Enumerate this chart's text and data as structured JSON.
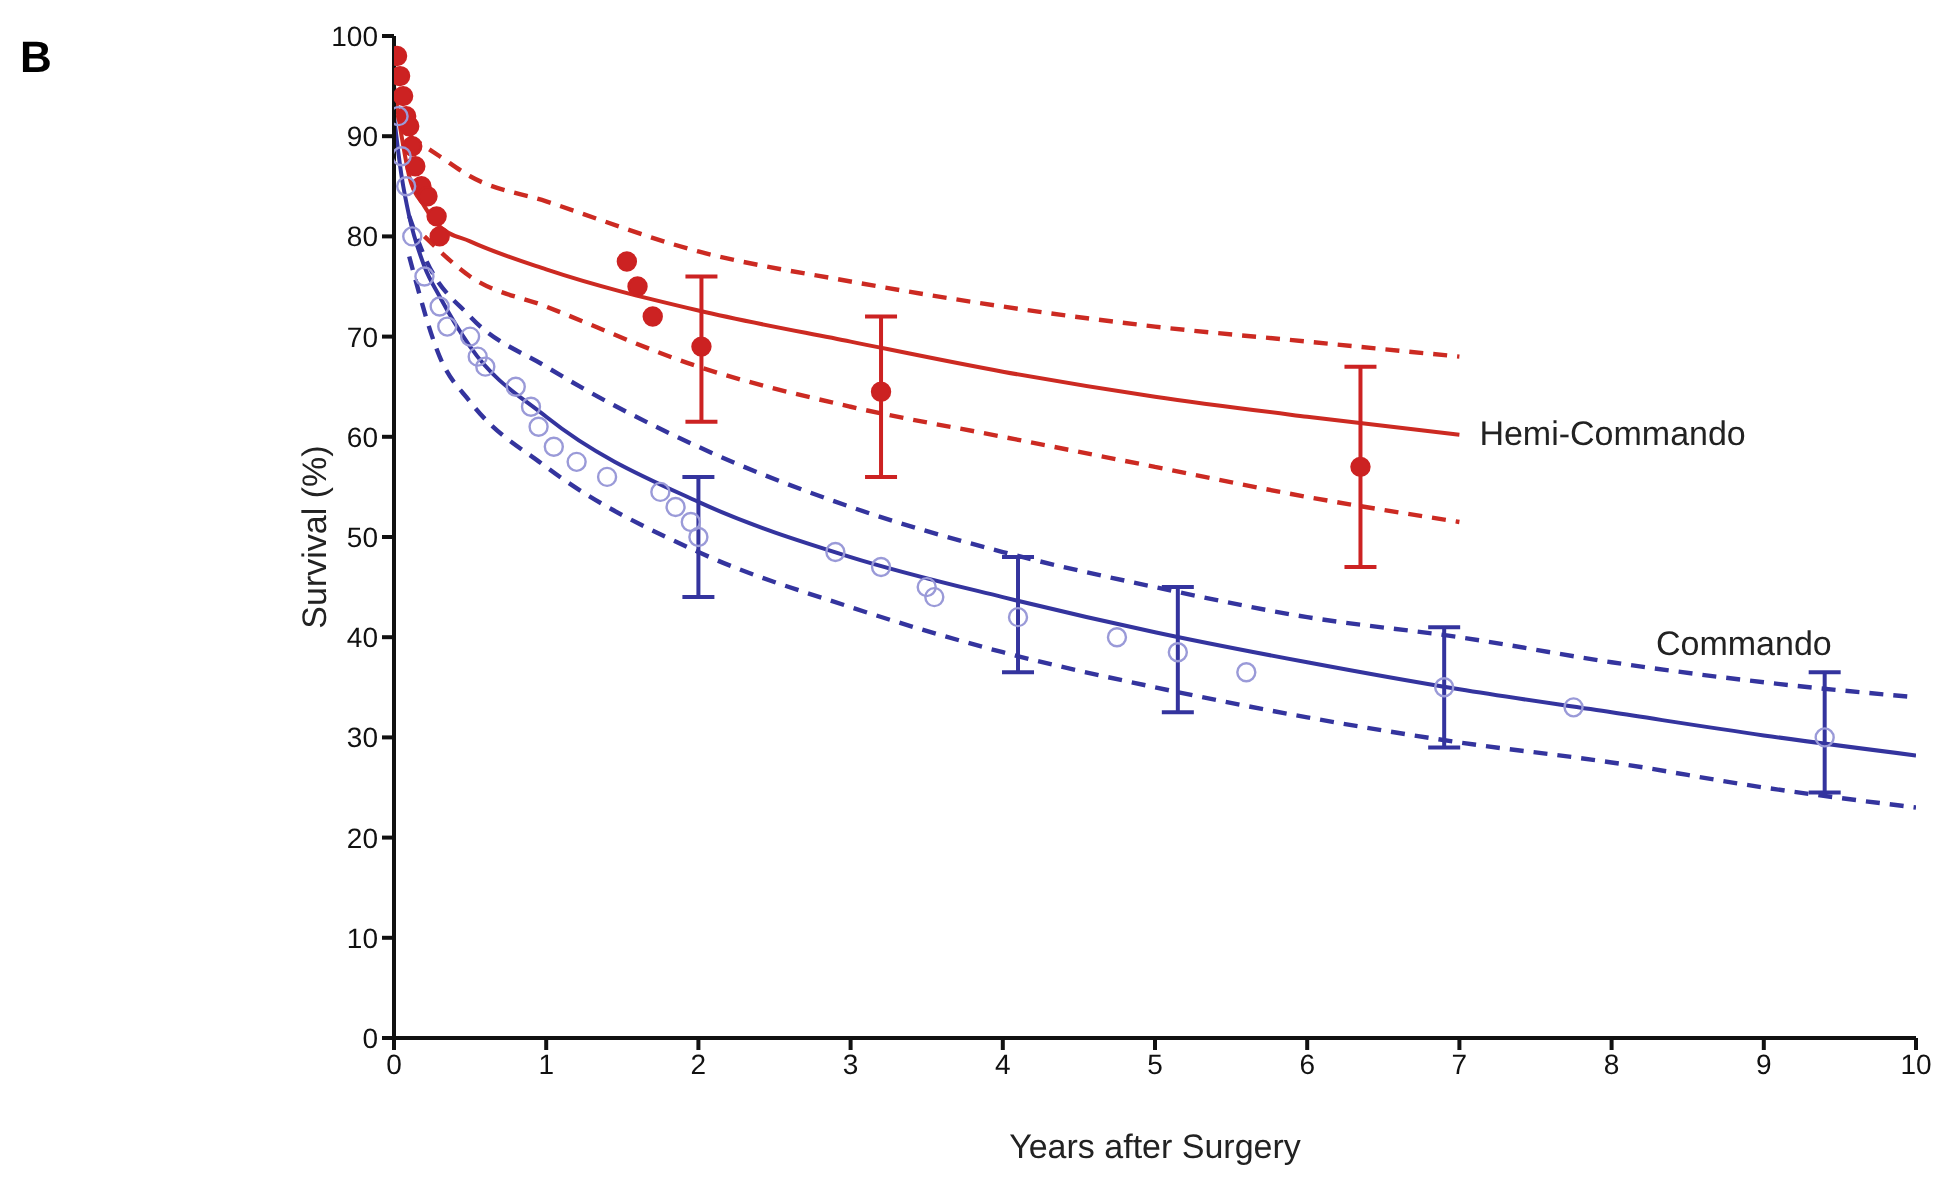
{
  "chart_data": {
    "type": "line",
    "title": "B",
    "xlabel": "Years after Surgery",
    "ylabel": "Survival (%)",
    "xlim": [
      0,
      10
    ],
    "xticks": [
      0,
      1,
      2,
      3,
      4,
      5,
      6,
      7,
      8,
      9,
      10
    ],
    "ylim": [
      0,
      100
    ],
    "yticks": [
      0,
      10,
      20,
      30,
      40,
      50,
      60,
      70,
      80,
      90,
      100
    ],
    "legend": false,
    "series": [
      {
        "name": "Hemi-Commando",
        "color": "#cc2a22",
        "line_style": "solid",
        "x": [
          0,
          0.05,
          0.1,
          0.2,
          0.3,
          0.5,
          1,
          2,
          3,
          4,
          5,
          6,
          7
        ],
        "values": [
          95,
          90,
          86,
          83,
          81,
          79.5,
          76.7,
          72.6,
          69.5,
          66.5,
          64,
          62,
          60.2
        ]
      },
      {
        "type": "line",
        "color": "#cc2a22",
        "line_style": "dashed",
        "x": [
          0.1,
          0.3,
          0.5,
          1,
          2,
          3,
          4,
          5,
          6,
          7
        ],
        "values": [
          90,
          88,
          86,
          83.5,
          78.5,
          75.5,
          73,
          71,
          69.5,
          68
        ]
      },
      {
        "type": "line",
        "color": "#cc2a22",
        "line_style": "dashed",
        "x": [
          0.2,
          0.5,
          1,
          2,
          3,
          4,
          5,
          6,
          7
        ],
        "values": [
          80,
          76,
          73,
          67,
          63,
          60,
          57,
          54,
          51.5
        ]
      },
      {
        "name": "Commando",
        "color": "#34349e",
        "line_style": "solid",
        "x": [
          0,
          0.05,
          0.1,
          0.2,
          0.3,
          0.5,
          1,
          2,
          3,
          4,
          5,
          6,
          7,
          8,
          9,
          10
        ],
        "values": [
          92,
          86,
          82,
          77,
          74,
          69,
          62,
          53.5,
          48,
          44,
          40.5,
          37.5,
          34.8,
          32.5,
          30.2,
          28.2
        ]
      },
      {
        "type": "line",
        "color": "#34349e",
        "line_style": "dashed",
        "x": [
          0.1,
          0.2,
          0.5,
          1,
          2,
          3,
          4,
          5,
          6,
          7,
          8,
          9,
          10
        ],
        "values": [
          82,
          78,
          72,
          67,
          59,
          53,
          48.5,
          45,
          42,
          40,
          37.5,
          35.5,
          34
        ]
      },
      {
        "type": "line",
        "color": "#34349e",
        "line_style": "dashed",
        "x": [
          0.1,
          0.3,
          0.5,
          1,
          2,
          3,
          4,
          5,
          6,
          7,
          8,
          9,
          10
        ],
        "values": [
          78,
          68,
          63.5,
          57,
          48.5,
          43,
          38.5,
          35,
          32,
          29.5,
          27.5,
          25,
          23
        ]
      },
      {
        "type": "scatter",
        "color": "#cc2222",
        "marker": "circle",
        "x": [
          0.02,
          0.04,
          0.06,
          0.08,
          0.1,
          0.12,
          0.14,
          0.18,
          0.22,
          0.28,
          0.3,
          1.53,
          1.6,
          1.7,
          2.02,
          3.2,
          6.35
        ],
        "values": [
          98,
          96,
          94,
          92,
          91,
          89,
          87,
          85,
          84,
          82,
          80,
          77.5,
          75,
          72,
          69,
          64.5,
          57
        ],
        "errors": [
          null,
          null,
          null,
          null,
          null,
          null,
          null,
          null,
          null,
          null,
          null,
          null,
          null,
          null,
          [
            61.5,
            76
          ],
          [
            56,
            72
          ],
          [
            47,
            67
          ]
        ]
      },
      {
        "type": "scatter",
        "color": "#9a9ad8",
        "marker": "circle",
        "x": [
          0.03,
          0.05,
          0.08,
          0.12,
          0.2,
          0.3,
          0.35,
          0.5,
          0.55,
          0.6,
          0.8,
          0.9,
          0.95,
          1.05,
          1.2,
          1.4,
          1.75,
          1.85,
          1.95,
          2.0,
          2.9,
          3.2,
          3.5,
          3.55,
          4.1,
          4.75,
          5.15,
          5.6,
          6.9,
          7.75,
          9.4
        ],
        "values": [
          92,
          88,
          85,
          80,
          76,
          73,
          71,
          70,
          68,
          67,
          65,
          63,
          61,
          59,
          57.5,
          56,
          54.5,
          53,
          51.5,
          50,
          48.5,
          47,
          45,
          44,
          42,
          40,
          38.5,
          36.5,
          35,
          33,
          30
        ],
        "errors": [
          null,
          null,
          null,
          null,
          null,
          null,
          null,
          null,
          null,
          null,
          null,
          null,
          null,
          null,
          null,
          null,
          null,
          null,
          null,
          [
            44,
            56
          ],
          null,
          null,
          null,
          null,
          [
            36.5,
            48
          ],
          null,
          [
            32.5,
            45
          ],
          null,
          [
            29,
            41
          ],
          null,
          [
            24.5,
            36.5
          ]
        ]
      }
    ]
  }
}
